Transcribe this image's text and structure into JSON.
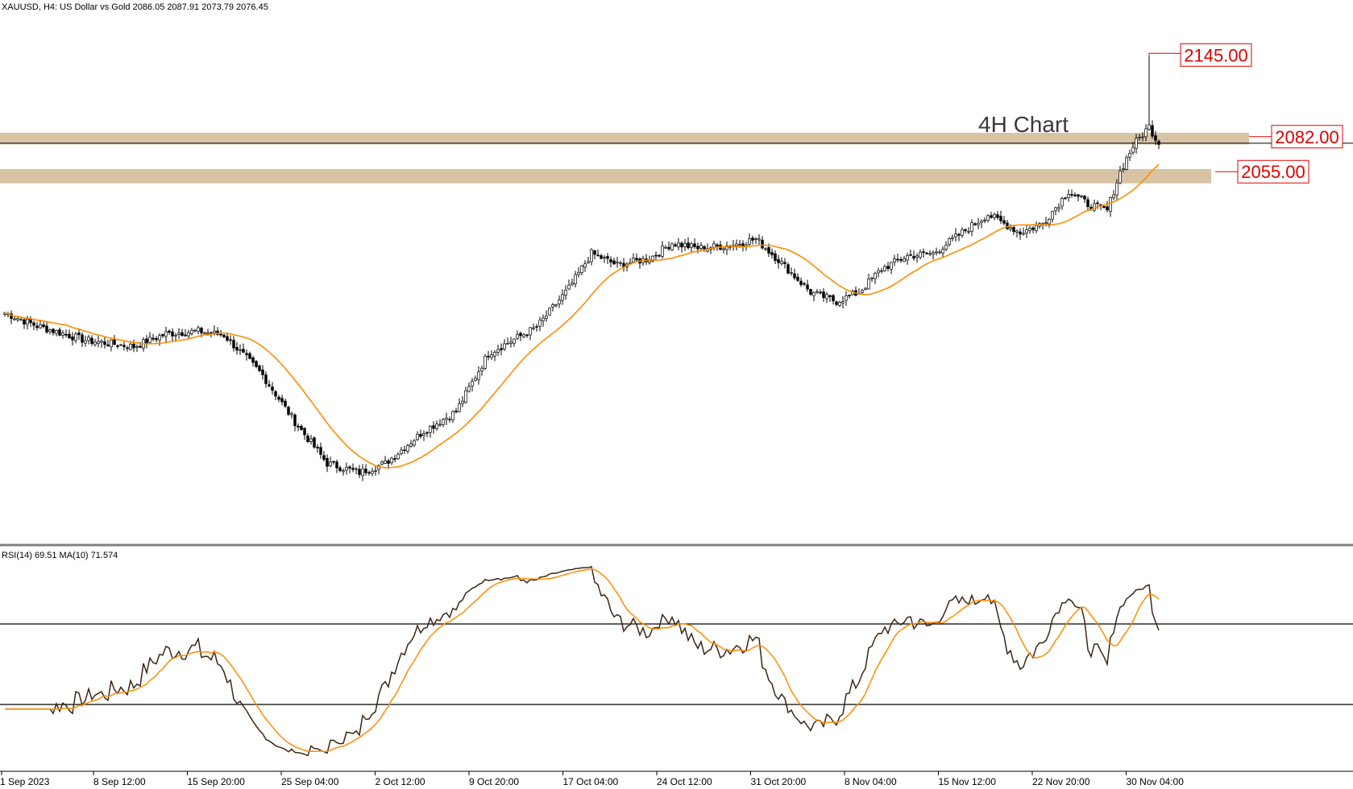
{
  "header": {
    "symbol_text": "XAUUSD, H4:  US Dollar vs Gold  2086.05 2087.91 2073.79 2076.45"
  },
  "chart_data": {
    "type": "candlestick",
    "title": "4H Chart",
    "ylim": [
      1790,
      2175
    ],
    "x_ticks": [
      "1 Sep 2023",
      "8 Sep 12:00",
      "15 Sep 20:00",
      "25 Sep 04:00",
      "2 Oct 12:00",
      "9 Oct 20:00",
      "17 Oct 04:00",
      "24 Oct 12:00",
      "31 Oct 20:00",
      "8 Nov 04:00",
      "15 Nov 12:00",
      "22 Nov 20:00",
      "30 Nov 04:00"
    ],
    "price_anchors": [
      [
        0,
        1946
      ],
      [
        10,
        1936
      ],
      [
        25,
        1925
      ],
      [
        40,
        1920
      ],
      [
        50,
        1930
      ],
      [
        60,
        1932
      ],
      [
        68,
        1929
      ],
      [
        80,
        1898
      ],
      [
        90,
        1862
      ],
      [
        100,
        1830
      ],
      [
        110,
        1823
      ],
      [
        118,
        1830
      ],
      [
        130,
        1855
      ],
      [
        140,
        1870
      ],
      [
        150,
        1915
      ],
      [
        165,
        1935
      ],
      [
        175,
        1965
      ],
      [
        182,
        1992
      ],
      [
        190,
        1983
      ],
      [
        200,
        1988
      ],
      [
        207,
        2000
      ],
      [
        215,
        1996
      ],
      [
        225,
        1998
      ],
      [
        233,
        2003
      ],
      [
        240,
        1987
      ],
      [
        250,
        1962
      ],
      [
        258,
        1955
      ],
      [
        265,
        1962
      ],
      [
        272,
        1980
      ],
      [
        280,
        1990
      ],
      [
        288,
        1992
      ],
      [
        297,
        2008
      ],
      [
        305,
        2022
      ],
      [
        315,
        2008
      ],
      [
        322,
        2015
      ],
      [
        330,
        2040
      ],
      [
        336,
        2030
      ],
      [
        342,
        2025
      ],
      [
        346,
        2055
      ],
      [
        350,
        2075
      ],
      [
        355,
        2090
      ],
      [
        358,
        2076
      ]
    ],
    "rsi": {
      "period": 14,
      "value": 69.51,
      "ma_period": 10,
      "ma_value": 71.574,
      "label": "RSI(14) 69.51 MA(10) 71.574",
      "levels": [
        70,
        30
      ],
      "ylim": [
        0,
        100
      ]
    },
    "zones": [
      {
        "label": "2082.00",
        "low": 2076,
        "high": 2085
      },
      {
        "label": "2055.00",
        "low": 2046,
        "high": 2057
      }
    ],
    "levels": [
      {
        "label": "2145.00",
        "value": 2145
      },
      {
        "label": "2082.00",
        "value": 2082
      },
      {
        "label": "2055.00",
        "value": 2055
      }
    ],
    "colors": {
      "bull": "#ffffff",
      "bear": "#000000",
      "ma": "#ff8c00",
      "zone": "#d8c3a5",
      "rsi_line": "#3b2716",
      "rsi_ma": "#ff8c00",
      "level_text": "#e00000"
    }
  }
}
